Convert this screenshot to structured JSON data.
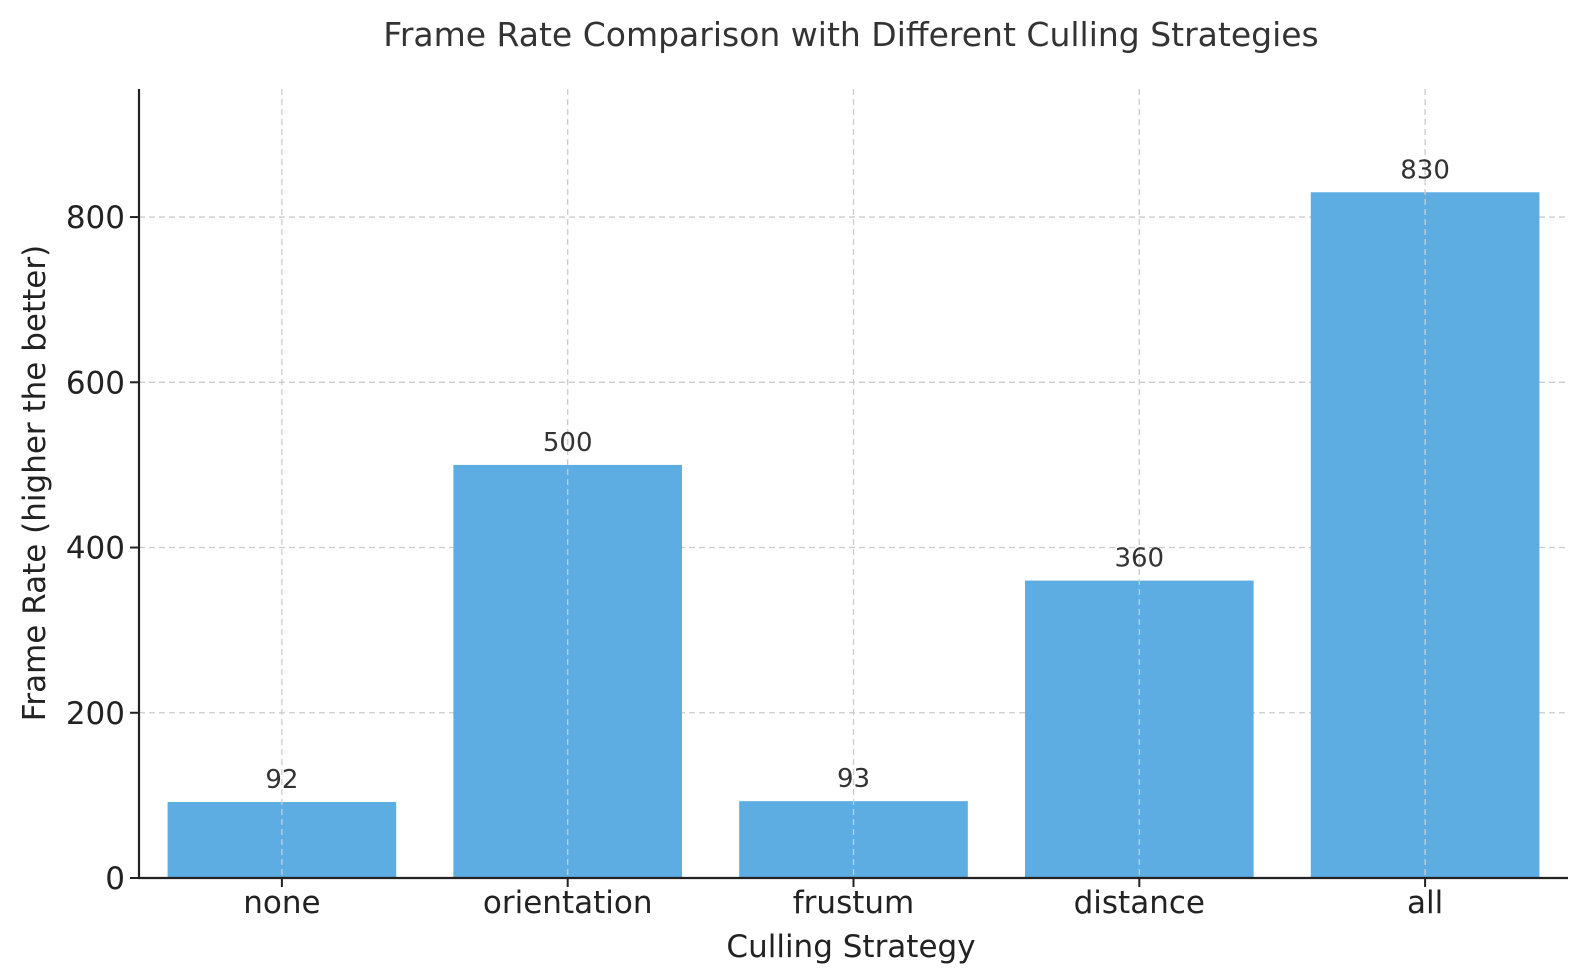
{
  "chart_data": {
    "type": "bar",
    "title": "Frame Rate Comparison with Different Culling Strategies",
    "xlabel": "Culling Strategy",
    "ylabel": "Frame Rate (higher the better)",
    "categories": [
      "none",
      "orientation",
      "frustum",
      "distance",
      "all"
    ],
    "values": [
      92,
      500,
      93,
      360,
      830
    ],
    "data_labels": [
      "92",
      "500",
      "93",
      "360",
      "830"
    ],
    "ylim": [
      0,
      955
    ],
    "yticks": [
      0,
      200,
      400,
      600,
      800
    ],
    "grid": true,
    "bar_color": "#5DADE2"
  }
}
